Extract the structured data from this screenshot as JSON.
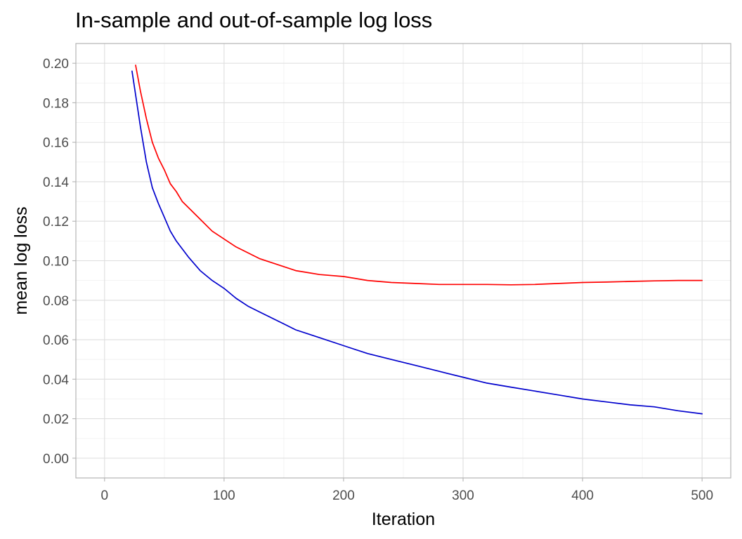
{
  "chart_data": {
    "type": "line",
    "title": "In-sample and out-of-sample log loss",
    "xlabel": "Iteration",
    "ylabel": "mean log loss",
    "xlim": [
      -24,
      524
    ],
    "ylim": [
      -0.01,
      0.21
    ],
    "x_ticks": [
      0,
      100,
      200,
      300,
      400,
      500
    ],
    "y_ticks": [
      0.0,
      0.02,
      0.04,
      0.06,
      0.08,
      0.1,
      0.12,
      0.14,
      0.16,
      0.18,
      0.2
    ],
    "x_tick_labels": [
      "0",
      "100",
      "200",
      "300",
      "400",
      "500"
    ],
    "y_tick_labels": [
      "0.00",
      "0.02",
      "0.04",
      "0.06",
      "0.08",
      "0.10",
      "0.12",
      "0.14",
      "0.16",
      "0.18",
      "0.20"
    ],
    "grid": true,
    "legend": "none",
    "series": [
      {
        "color": "#ff0000",
        "x": [
          26,
          30,
          35,
          40,
          45,
          50,
          55,
          60,
          65,
          70,
          80,
          90,
          100,
          110,
          120,
          130,
          140,
          150,
          160,
          170,
          180,
          200,
          220,
          240,
          260,
          280,
          300,
          320,
          340,
          360,
          380,
          400,
          420,
          440,
          460,
          480,
          500
        ],
        "y": [
          0.199,
          0.186,
          0.172,
          0.16,
          0.152,
          0.146,
          0.139,
          0.135,
          0.13,
          0.127,
          0.121,
          0.115,
          0.111,
          0.107,
          0.104,
          0.101,
          0.099,
          0.097,
          0.095,
          0.094,
          0.093,
          0.092,
          0.09,
          0.089,
          0.0885,
          0.088,
          0.088,
          0.088,
          0.0878,
          0.088,
          0.0885,
          0.089,
          0.0892,
          0.0895,
          0.0898,
          0.09,
          0.09
        ]
      },
      {
        "color": "#0000cd",
        "x": [
          23,
          30,
          35,
          40,
          45,
          50,
          55,
          60,
          65,
          70,
          80,
          90,
          100,
          110,
          120,
          130,
          140,
          150,
          160,
          170,
          180,
          200,
          220,
          240,
          260,
          280,
          300,
          320,
          340,
          360,
          380,
          400,
          420,
          440,
          460,
          480,
          500
        ],
        "y": [
          0.196,
          0.168,
          0.15,
          0.137,
          0.129,
          0.122,
          0.115,
          0.11,
          0.106,
          0.102,
          0.095,
          0.09,
          0.086,
          0.081,
          0.077,
          0.074,
          0.071,
          0.068,
          0.065,
          0.063,
          0.061,
          0.057,
          0.053,
          0.05,
          0.047,
          0.044,
          0.041,
          0.038,
          0.036,
          0.034,
          0.032,
          0.03,
          0.0285,
          0.027,
          0.026,
          0.024,
          0.0225
        ]
      }
    ]
  }
}
